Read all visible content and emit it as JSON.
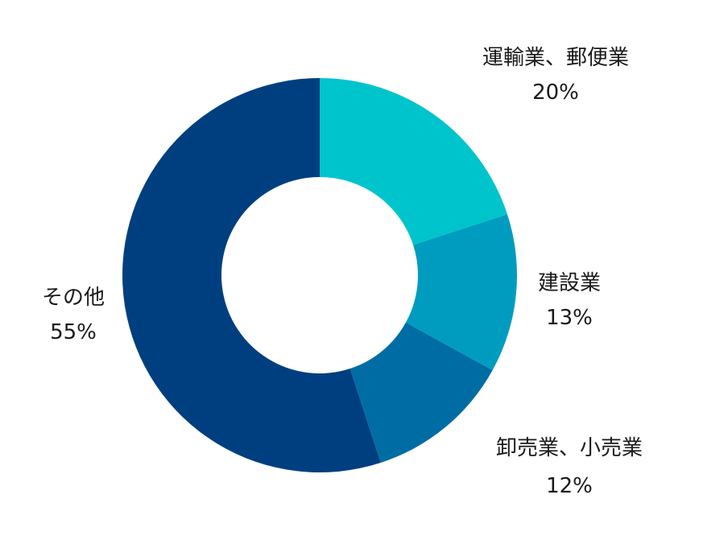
{
  "chart_data": {
    "type": "pie",
    "style": "donut",
    "title": "",
    "categories": [
      "運輸業、郵便業",
      "建設業",
      "卸売業、小売業",
      "その他"
    ],
    "values": [
      20,
      13,
      12,
      55
    ],
    "value_labels": [
      "20%",
      "13%",
      "12%",
      "55%"
    ],
    "colors": [
      "#00C4CC",
      "#009CC0",
      "#006CA4",
      "#003F7F"
    ],
    "legend": "none"
  }
}
